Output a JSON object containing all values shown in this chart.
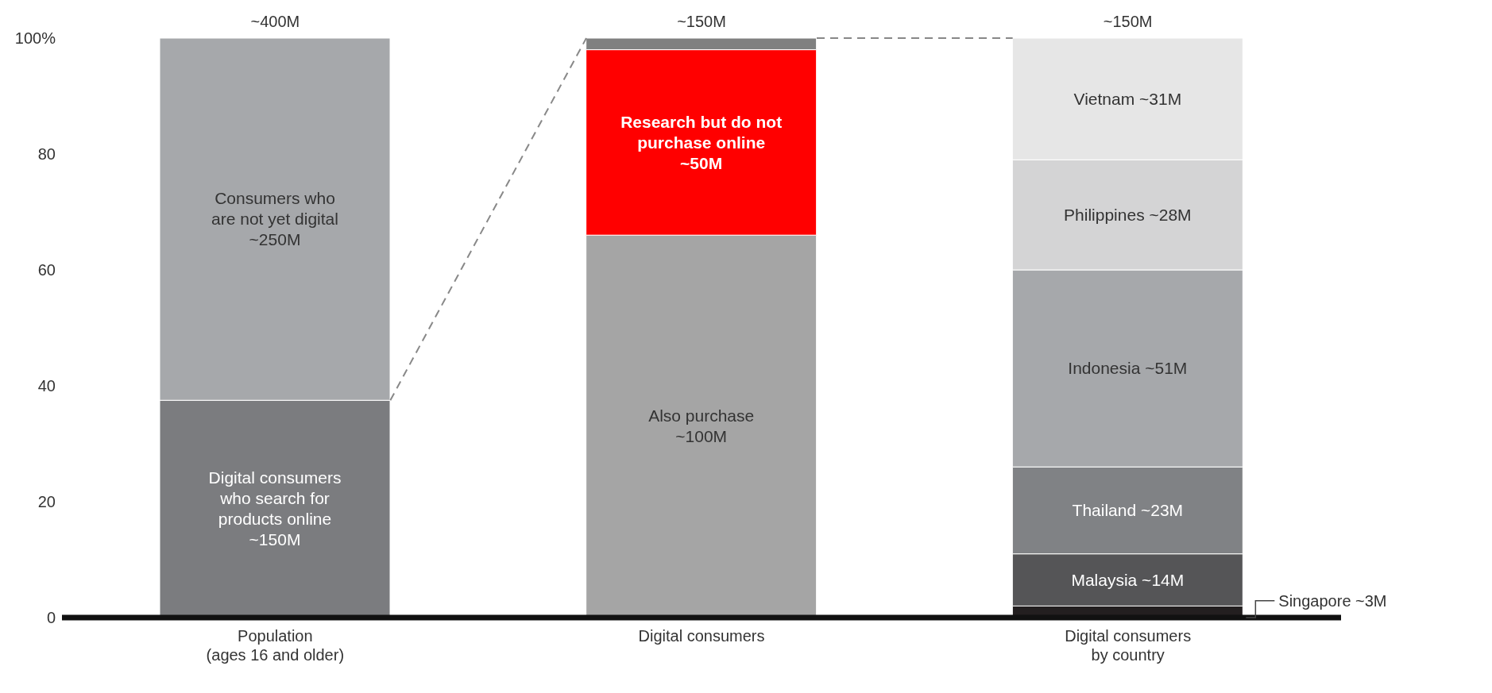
{
  "chart_data": {
    "type": "bar",
    "stacked": true,
    "categories": [
      "Population\n(ages 16 and older)",
      "Digital consumers",
      "Digital consumers\nby country"
    ],
    "ylim": [
      0,
      100
    ],
    "yticks": [
      0,
      20,
      40,
      60,
      80,
      {
        "value": 100,
        "label": "100%"
      }
    ],
    "annotations": [
      {
        "text": "~400M",
        "x": "Population\n(ages 16 and older)",
        "y": 100
      },
      {
        "text": "~150M",
        "x": "Digital consumers",
        "y": 100
      },
      {
        "text": "~150M",
        "x": "Digital consumers\nby country",
        "y": 100
      }
    ],
    "series": [
      {
        "name": "Digital consumers\nwho search for\nproducts online\n~150M",
        "color": "#7b7c7f",
        "values": [
          37.5,
          null,
          null
        ]
      },
      {
        "name": "Consumers who\nare not yet digital\n~250M",
        "color": "#a6a8ab",
        "values": [
          62.5,
          null,
          null
        ]
      },
      {
        "name": "Also purchase\n~100M",
        "color": "#a5a5a5",
        "values": [
          null,
          66,
          null
        ]
      },
      {
        "name": "Research but do not\npurchase online\n~50M",
        "color": "#ff0000",
        "values": [
          null,
          32,
          null
        ]
      },
      {
        "color": "#808080",
        "values": [
          null,
          2,
          null
        ]
      },
      {
        "name": "Singapore ~3M",
        "color": "#231f20",
        "values": [
          null,
          null,
          2
        ]
      },
      {
        "name": "Malaysia ~14M",
        "color": "#555557",
        "values": [
          null,
          null,
          9
        ]
      },
      {
        "name": "Thailand ~23M",
        "color": "#808285",
        "values": [
          null,
          null,
          15
        ]
      },
      {
        "name": "Indonesia ~51M",
        "color": "#a6a8ab",
        "values": [
          null,
          null,
          34
        ]
      },
      {
        "name": "Philippines ~28M",
        "color": "#d4d4d5",
        "values": [
          null,
          null,
          19
        ]
      },
      {
        "name": "Vietnam ~31M",
        "color": "#e6e6e6",
        "values": [
          null,
          null,
          21
        ]
      }
    ]
  }
}
